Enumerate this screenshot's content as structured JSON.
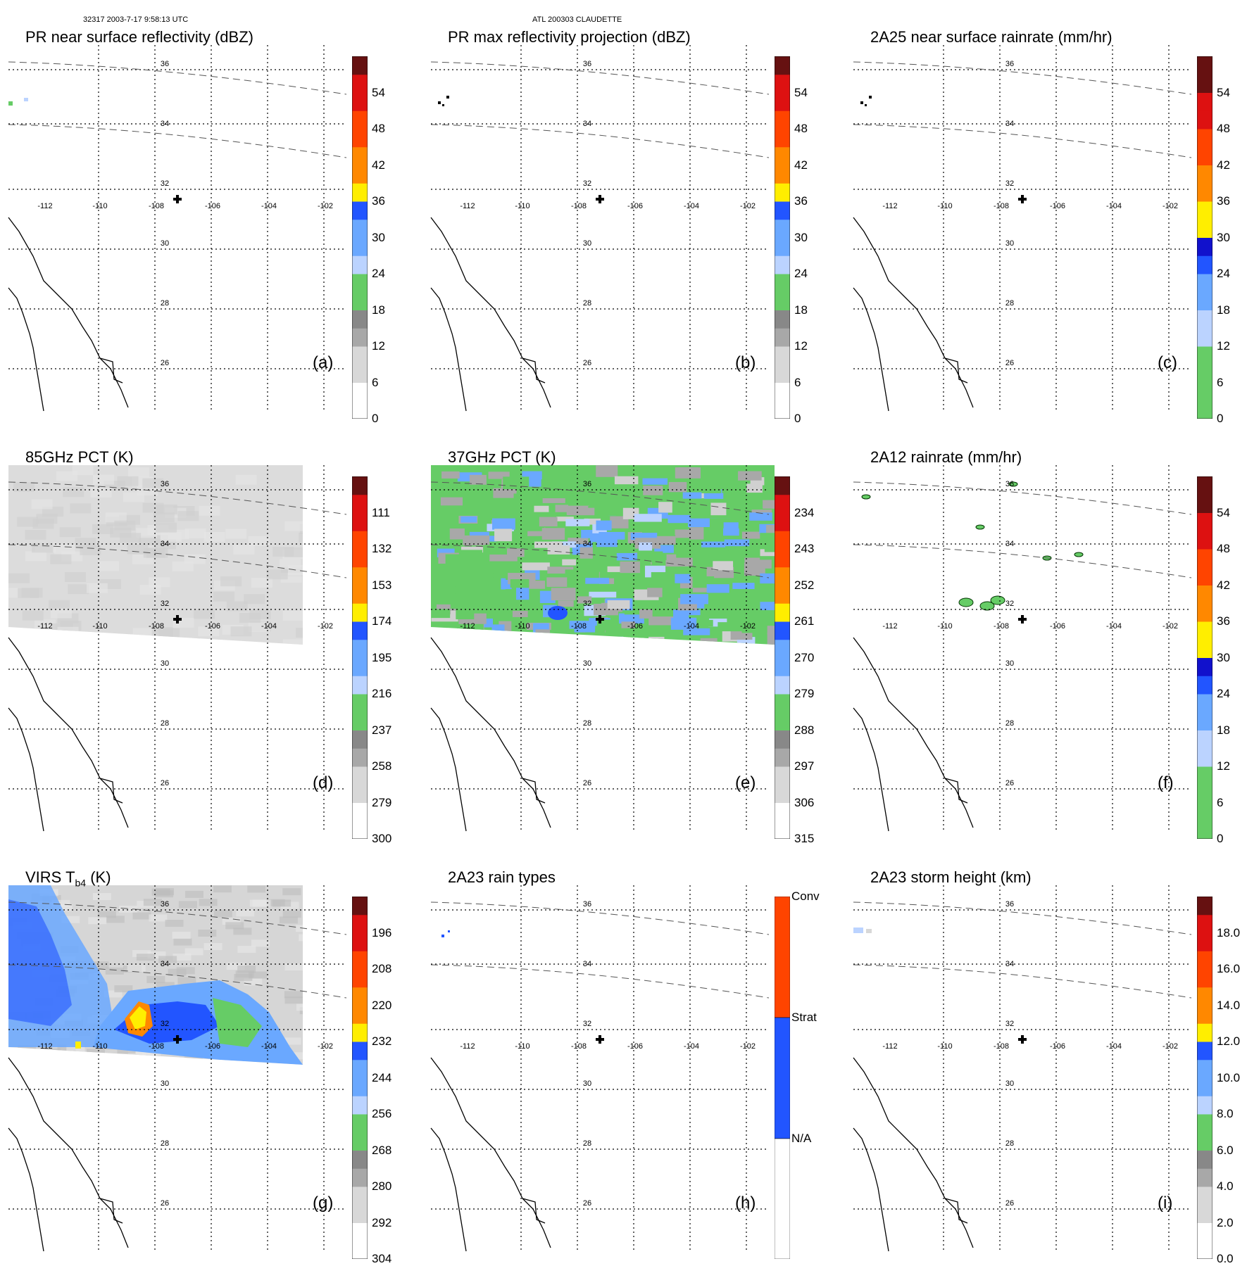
{
  "header": {
    "left": "32317 2003-7-17 9:58:13 UTC",
    "center": "ATL 200303 CLAUDETTE"
  },
  "map_labels": {
    "lon": [
      "-112",
      "-110",
      "-108",
      "-106",
      "-104",
      "-102"
    ],
    "lat": [
      "36",
      "34",
      "32",
      "30",
      "28",
      "26"
    ]
  },
  "colors": {
    "white": "#ffffff",
    "gray_light": "#d8d8d8",
    "gray_mid": "#a8a8a8",
    "gray_dark": "#888888",
    "green": "#66cc66",
    "blue_light": "#bbd3ff",
    "blue_mid": "#6aa8ff",
    "blue": "#2255ff",
    "blue_dark": "#1111cc",
    "yellow": "#ffee00",
    "orange": "#ff8800",
    "red_orange": "#ff4400",
    "red": "#dd1111",
    "dark_red": "#661111"
  },
  "chart_data": [
    {
      "type": "heatmap",
      "title": "PR near surface reflectivity (dBZ)",
      "letter": "(a)",
      "colorbar": {
        "ticks": [
          "0",
          "6",
          "12",
          "18",
          "24",
          "30",
          "36",
          "42",
          "48",
          "54"
        ],
        "vmin": 0,
        "vmax": 60
      }
    },
    {
      "type": "heatmap",
      "title": "PR max reflectivity projection (dBZ)",
      "letter": "(b)",
      "colorbar": {
        "ticks": [
          "0",
          "6",
          "12",
          "18",
          "24",
          "30",
          "36",
          "42",
          "48",
          "54"
        ],
        "vmin": 0,
        "vmax": 60
      }
    },
    {
      "type": "heatmap",
      "title": "2A25 near surface rainrate (mm/hr)",
      "letter": "(c)",
      "colorbar": {
        "ticks": [
          "0",
          "6",
          "12",
          "18",
          "24",
          "30",
          "36",
          "42",
          "48",
          "54"
        ],
        "vmin": 0,
        "vmax": 60
      }
    },
    {
      "type": "heatmap",
      "title": "85GHz PCT (K)",
      "letter": "(d)",
      "colorbar": {
        "ticks": [
          "300",
          "279",
          "258",
          "237",
          "216",
          "195",
          "174",
          "153",
          "132",
          "111"
        ],
        "vmin": 300,
        "vmax": 90
      }
    },
    {
      "type": "heatmap",
      "title": "37GHz PCT (K)",
      "letter": "(e)",
      "colorbar": {
        "ticks": [
          "315",
          "306",
          "297",
          "288",
          "279",
          "270",
          "261",
          "252",
          "243",
          "234"
        ],
        "vmin": 315,
        "vmax": 225
      }
    },
    {
      "type": "heatmap",
      "title": "2A12 rainrate (mm/hr)",
      "letter": "(f)",
      "colorbar": {
        "ticks": [
          "0",
          "6",
          "12",
          "18",
          "24",
          "30",
          "36",
          "42",
          "48",
          "54"
        ],
        "vmin": 0,
        "vmax": 60
      }
    },
    {
      "type": "heatmap",
      "title": "VIRS T",
      "title_sub": "b4",
      "title_suffix": " (K)",
      "letter": "(g)",
      "colorbar": {
        "ticks": [
          "304",
          "292",
          "280",
          "268",
          "256",
          "244",
          "232",
          "220",
          "208",
          "196"
        ],
        "vmin": 304,
        "vmax": 184
      }
    },
    {
      "type": "heatmap",
      "title": "2A23 rain types",
      "letter": "(h)",
      "colorbar": {
        "ticks": [
          "N/A",
          "Strat",
          "Conv"
        ],
        "categorical": true
      }
    },
    {
      "type": "heatmap",
      "title": "2A23 storm height (km)",
      "letter": "(i)",
      "colorbar": {
        "ticks": [
          "0.0",
          "2.0",
          "4.0",
          "6.0",
          "8.0",
          "10.0",
          "12.0",
          "14.0",
          "16.0",
          "18.0"
        ],
        "vmin": 0,
        "vmax": 20
      }
    }
  ]
}
